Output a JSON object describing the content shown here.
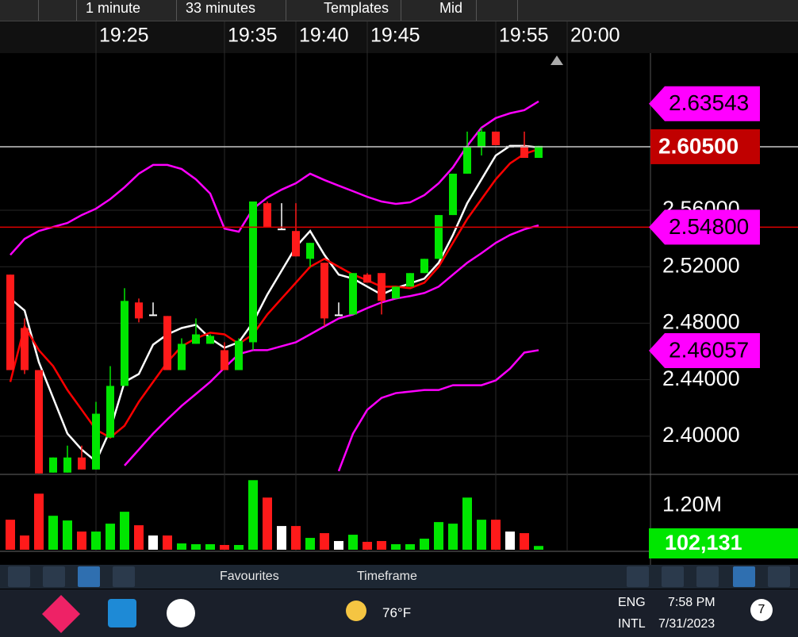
{
  "toolbar": {
    "items": [
      "1 minute",
      "33 minutes",
      "Templates",
      "Mid"
    ]
  },
  "chart_data": [
    {
      "type": "candlestick",
      "categories": [
        null,
        null,
        null,
        null,
        null,
        null,
        "19:25",
        null,
        null,
        null,
        null,
        null,
        null,
        null,
        null,
        "19:35",
        null,
        null,
        null,
        null,
        "19:40",
        null,
        null,
        null,
        null,
        "19:45",
        null,
        null,
        null,
        null,
        null,
        null,
        null,
        null,
        "19:55",
        null,
        null,
        null,
        null,
        "20:00"
      ],
      "open": [
        2.5144,
        2.4766,
        2.4468,
        2.3742,
        2.3742,
        2.3849,
        2.3764,
        2.399,
        2.4356,
        2.4947,
        2.4862,
        2.4851,
        2.4468,
        2.4654,
        2.4654,
        2.4609,
        2.4468,
        2.4665,
        2.565,
        2.547,
        2.5453,
        2.5256,
        2.5228,
        2.4862,
        2.4862,
        2.5144,
        2.5155,
        2.4975,
        2.5059,
        2.5155,
        2.5256,
        2.5566,
        2.5859,
        2.6045,
        2.6157,
        2.6056,
        2.6056,
        2.5971,
        null,
        null
      ],
      "high": [
        2.5144,
        2.4834,
        2.4468,
        2.3849,
        2.3933,
        2.3933,
        2.4243,
        2.4496,
        2.5048,
        2.4975,
        2.4947,
        2.4851,
        2.4693,
        2.4834,
        2.4721,
        2.4665,
        2.4693,
        2.5662,
        2.5662,
        2.565,
        2.565,
        2.5369,
        2.5228,
        2.4947,
        2.5155,
        2.5155,
        2.5155,
        2.5059,
        2.5155,
        2.5256,
        2.5566,
        2.5859,
        2.6157,
        2.6185,
        2.6157,
        2.6056,
        2.6157,
        2.6056,
        null,
        null
      ],
      "low": [
        2.4468,
        2.444,
        2.3736,
        2.3742,
        2.3742,
        2.3764,
        2.3764,
        2.399,
        2.4356,
        2.4806,
        2.4862,
        2.4468,
        2.4468,
        2.4654,
        2.4654,
        2.4468,
        2.4468,
        2.4609,
        2.5482,
        2.547,
        2.5273,
        2.52,
        2.4778,
        2.4862,
        2.4862,
        2.5087,
        2.4862,
        2.4975,
        2.5059,
        2.5155,
        2.5256,
        2.5566,
        2.5859,
        2.5988,
        2.6061,
        2.6056,
        2.5971,
        2.5971,
        null,
        null
      ],
      "close": [
        2.4468,
        2.4468,
        2.3736,
        2.3849,
        2.3849,
        2.3764,
        2.4159,
        2.4356,
        2.4958,
        2.4834,
        2.4862,
        2.4468,
        2.4654,
        2.4721,
        2.471,
        2.4468,
        2.4676,
        2.5662,
        2.5482,
        2.547,
        2.5273,
        2.5369,
        2.4834,
        2.4862,
        2.5155,
        2.5087,
        2.4958,
        2.5059,
        2.5155,
        2.5256,
        2.5566,
        2.5859,
        2.6045,
        2.6157,
        2.6061,
        2.6056,
        2.5971,
        2.6056,
        null,
        null
      ],
      "up_color": "#00e600",
      "down_color": "#ff1a1a",
      "doji_color": "#ffffff",
      "lines": [
        {
          "color": "#ffffff",
          "values": [
            2.4975,
            2.489,
            2.4524,
            2.4271,
            2.4018,
            2.3905,
            2.3821,
            2.4046,
            2.4384,
            2.444,
            2.4648,
            2.4721,
            2.4766,
            2.4789,
            2.4693,
            2.4626,
            2.4665,
            2.4806,
            2.5003,
            2.5172,
            2.5341,
            2.5453,
            2.5284,
            2.5144,
            2.5116,
            2.5059,
            2.5003,
            2.5048,
            2.5082,
            2.5116,
            2.5228,
            2.5425,
            2.565,
            2.5819,
            2.5988,
            2.6056,
            2.6056,
            2.6045,
            null,
            null
          ]
        },
        {
          "color": "#ff0000",
          "values": [
            2.4384,
            2.4778,
            2.4609,
            2.4496,
            2.4327,
            2.4187,
            2.4046,
            2.399,
            2.4074,
            2.4243,
            2.4384,
            2.4524,
            2.4637,
            2.4693,
            2.4733,
            2.4721,
            2.4654,
            2.4721,
            2.4862,
            2.4975,
            2.5087,
            2.52,
            2.5256,
            2.52,
            2.5144,
            2.5104,
            2.5059,
            2.5059,
            2.5048,
            2.5087,
            2.52,
            2.5369,
            2.5538,
            2.5679,
            2.5819,
            2.5932,
            2.5999,
            2.6033,
            null,
            null
          ]
        },
        {
          "color": "#ff00ff",
          "values": [
            2.5284,
            2.5397,
            2.5453,
            2.5482,
            2.551,
            2.5566,
            2.5611,
            2.5679,
            2.5763,
            2.5859,
            2.5921,
            2.5921,
            2.5892,
            2.5819,
            2.5718,
            2.547,
            2.5448,
            2.5611,
            2.569,
            2.5746,
            2.5791,
            2.5859,
            2.5814,
            2.5774,
            2.5735,
            2.5695,
            2.5662,
            2.5645,
            2.5656,
            2.5707,
            2.5791,
            2.5904,
            2.6056,
            2.6185,
            2.6253,
            2.6287,
            2.6309,
            2.6371,
            null,
            null
          ]
        },
        {
          "color": "#ff00ff",
          "values": [
            null,
            null,
            null,
            null,
            null,
            null,
            null,
            null,
            2.3792,
            2.3905,
            2.4018,
            2.4119,
            2.4215,
            2.4299,
            2.4384,
            2.4485,
            2.4581,
            2.4609,
            2.4609,
            2.4637,
            2.4665,
            2.4721,
            2.4778,
            2.4834,
            2.4862,
            2.4907,
            2.4947,
            2.4975,
            2.4992,
            2.5014,
            2.5059,
            2.5144,
            2.5228,
            2.5296,
            2.5369,
            2.5425,
            2.5465,
            2.5493,
            null,
            null
          ]
        },
        {
          "color": "#ff00ff",
          "values": [
            null,
            null,
            null,
            null,
            null,
            null,
            null,
            null,
            null,
            null,
            null,
            null,
            null,
            null,
            null,
            null,
            null,
            null,
            null,
            null,
            null,
            null,
            null,
            2.3753,
            2.4018,
            2.4187,
            2.4271,
            2.4305,
            2.4316,
            2.4327,
            2.4327,
            2.4361,
            2.4361,
            2.4361,
            2.4395,
            2.4479,
            2.4592,
            2.4609,
            null,
            null
          ]
        }
      ],
      "ylim": [
        2.3735,
        2.6707
      ],
      "yticks": [
        {
          "value": 2.56,
          "label": "2.56000"
        },
        {
          "value": 2.52,
          "label": "2.52000"
        },
        {
          "value": 2.48,
          "label": "2.48000"
        },
        {
          "value": 2.44,
          "label": "2.44000"
        },
        {
          "value": 2.4,
          "label": "2.40000"
        }
      ],
      "grid": true,
      "price_tags": {
        "values": [
          2.63543,
          {
            "value": 2.605,
            "label": "2.60500"
          },
          {
            "value": 2.548,
            "label": "2.54800"
          },
          2.46057
        ],
        "colors": [
          "#ff00ff",
          "#c00000",
          "#ff00ff",
          "#ff00ff"
        ],
        "line_colors": [
          null,
          "#c8c8c8",
          "#e00000",
          null
        ]
      }
    },
    {
      "type": "bar",
      "values": [
        814000,
        386000,
        1520000,
        921000,
        793000,
        493000,
        493000,
        707000,
        1030000,
        664000,
        386000,
        386000,
        171000,
        150000,
        150000,
        129000,
        129000,
        1886000,
        1414000,
        643000,
        643000,
        321000,
        450000,
        236000,
        407000,
        214000,
        236000,
        150000,
        150000,
        300000,
        750000,
        707000,
        1414000,
        814000,
        814000,
        493000,
        450000,
        102131,
        null,
        null
      ],
      "ylim": [
        0,
        2000000
      ],
      "yticks": [
        {
          "value": 1200000,
          "label": "1.20M"
        }
      ],
      "last_tag": {
        "value": 102131,
        "label": "102,131"
      },
      "last_tag_color": "#00e600"
    }
  ],
  "bottom_toolbar": {
    "items": [
      "Favourites",
      "Timeframe"
    ]
  },
  "taskbar": {
    "weather": "76°F",
    "language": "ENG",
    "layout": "INTL",
    "time": "7:58 PM",
    "date": "7/31/2023",
    "notifications": "7"
  }
}
